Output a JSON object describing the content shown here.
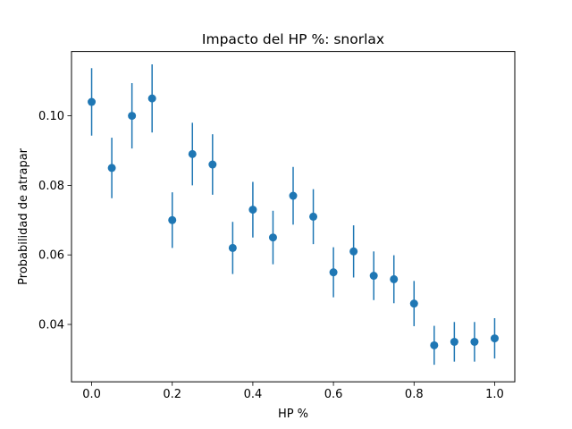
{
  "chart_data": {
    "type": "scatter",
    "title": "Impacto del HP %: snorlax",
    "xlabel": "HP %",
    "ylabel": "Probabilidad de atrapar",
    "xlim": [
      -0.05,
      1.05
    ],
    "ylim": [
      0.0235,
      0.1185
    ],
    "x_ticks": [
      0.0,
      0.2,
      0.4,
      0.6,
      0.8,
      1.0
    ],
    "x_tick_labels": [
      "0.0",
      "0.2",
      "0.4",
      "0.6",
      "0.8",
      "1.0"
    ],
    "y_ticks": [
      0.04,
      0.06,
      0.08,
      0.1
    ],
    "y_tick_labels": [
      "0.04",
      "0.06",
      "0.08",
      "0.10"
    ],
    "grid": false,
    "color": "#1f77b4",
    "series": [
      {
        "x": [
          0.0,
          0.05,
          0.1,
          0.15,
          0.2,
          0.25,
          0.3,
          0.35,
          0.4,
          0.45,
          0.5,
          0.55,
          0.6,
          0.65,
          0.7,
          0.75,
          0.8,
          0.85,
          0.9,
          0.95,
          1.0
        ],
        "y": [
          0.104,
          0.085,
          0.1,
          0.105,
          0.07,
          0.089,
          0.086,
          0.062,
          0.073,
          0.065,
          0.077,
          0.071,
          0.055,
          0.061,
          0.054,
          0.053,
          0.046,
          0.034,
          0.035,
          0.035,
          0.036
        ],
        "error": [
          0.0097,
          0.0087,
          0.0094,
          0.0098,
          0.008,
          0.009,
          0.0087,
          0.0075,
          0.008,
          0.0077,
          0.0083,
          0.0079,
          0.0072,
          0.0075,
          0.007,
          0.0069,
          0.0065,
          0.0056,
          0.0057,
          0.0057,
          0.0058
        ]
      }
    ]
  }
}
